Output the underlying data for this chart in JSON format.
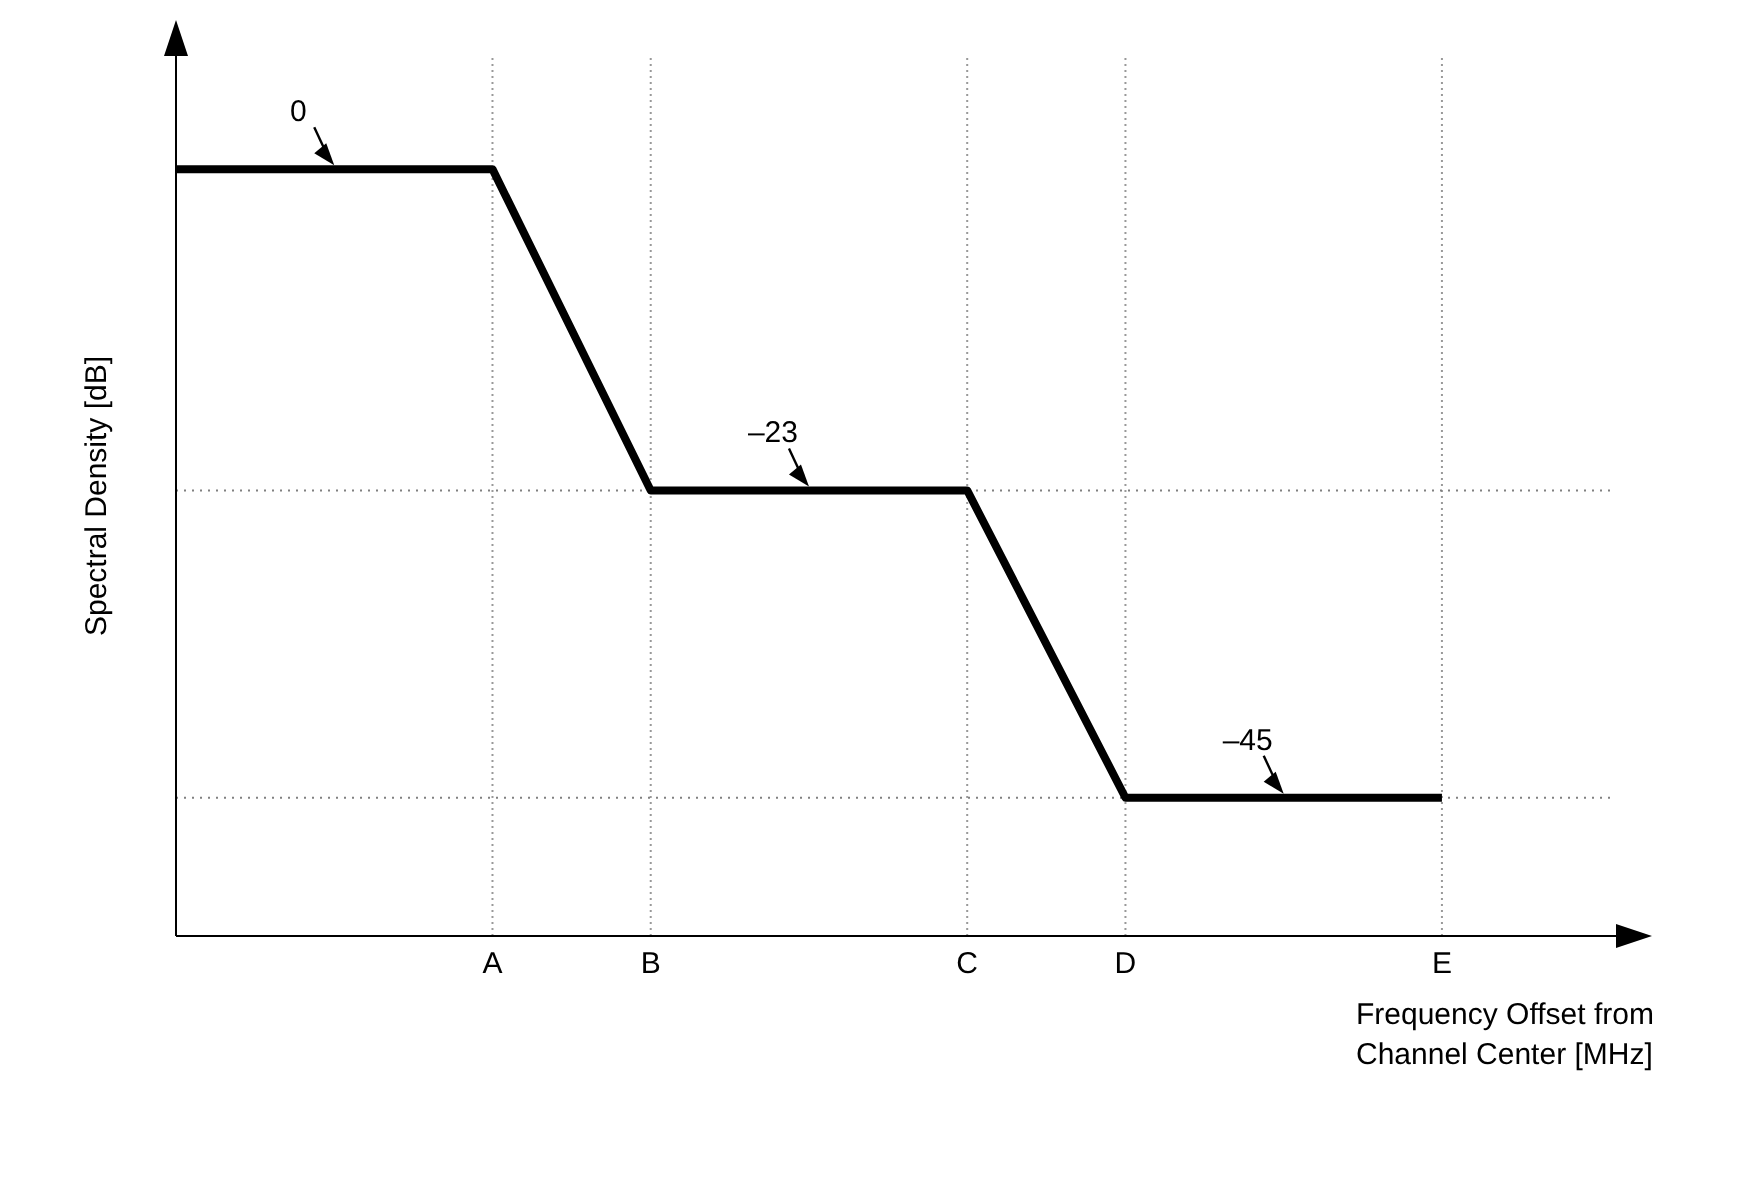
{
  "chart_data": {
    "type": "line",
    "categories": [
      null,
      null,
      "A",
      "B",
      null,
      "C",
      "D",
      null,
      "E"
    ],
    "values": [
      0,
      0,
      0,
      -23,
      -23,
      -23,
      -45,
      -45,
      -45
    ],
    "value_labels": [
      null,
      "0",
      null,
      null,
      "–23",
      null,
      null,
      "–45",
      null
    ],
    "color": "#000000",
    "tick_labels": "x",
    "grid": "x",
    "marker": "none",
    "line_style": "solid",
    "ref_lines": [
      {
        "axis": "y",
        "value": -23,
        "color": "#808080",
        "line_style": "dotted"
      },
      {
        "axis": "y",
        "value": -45,
        "color": "#808080",
        "line_style": "dotted"
      }
    ],
    "xlabel": "Frequency Offset from Channel Center [MHz]",
    "ylabel": "Spectral Density [dB]"
  }
}
